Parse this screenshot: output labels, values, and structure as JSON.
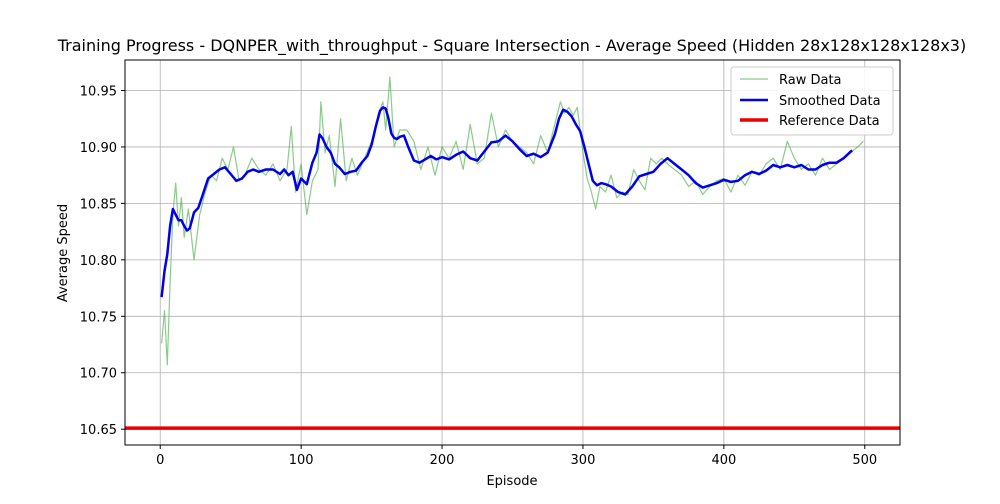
{
  "chart_data": {
    "type": "line",
    "title": "Training Progress - DQNPER_with_throughput - Square Intersection - Average Speed (Hidden 28x128x128x128x3)",
    "xlabel": "Episode",
    "ylabel": "Average Speed",
    "xlim": [
      -25,
      525
    ],
    "ylim": [
      10.636,
      10.977
    ],
    "xticks": [
      0,
      100,
      200,
      300,
      400,
      500
    ],
    "yticks": [
      10.65,
      10.7,
      10.75,
      10.8,
      10.85,
      10.9,
      10.95
    ],
    "grid": true,
    "legend_position": "top-right",
    "series": [
      {
        "name": "Raw Data",
        "color": "#4daf4a",
        "style": "thin-translucent",
        "x": [
          1,
          3,
          5,
          7,
          9,
          11,
          13,
          15,
          17,
          20,
          24,
          28,
          32,
          36,
          40,
          44,
          48,
          52,
          56,
          60,
          65,
          70,
          75,
          80,
          85,
          90,
          93,
          96,
          100,
          104,
          108,
          112,
          114,
          117,
          120,
          124,
          128,
          132,
          136,
          140,
          145,
          150,
          155,
          158,
          160,
          163,
          166,
          170,
          175,
          180,
          185,
          190,
          195,
          200,
          205,
          210,
          215,
          220,
          225,
          230,
          235,
          240,
          245,
          250,
          255,
          260,
          265,
          270,
          275,
          280,
          284,
          287,
          290,
          293,
          296,
          300,
          303,
          306,
          309,
          312,
          316,
          320,
          324,
          328,
          332,
          336,
          340,
          344,
          348,
          352,
          356,
          360,
          365,
          370,
          375,
          380,
          385,
          390,
          395,
          400,
          405,
          410,
          415,
          420,
          425,
          430,
          435,
          440,
          445,
          450,
          455,
          460,
          465,
          470,
          475,
          480,
          485,
          490,
          495,
          499
        ],
        "values": [
          10.726,
          10.755,
          10.707,
          10.78,
          10.84,
          10.868,
          10.83,
          10.855,
          10.82,
          10.845,
          10.8,
          10.84,
          10.86,
          10.875,
          10.87,
          10.89,
          10.88,
          10.9,
          10.87,
          10.875,
          10.89,
          10.88,
          10.875,
          10.885,
          10.87,
          10.88,
          10.918,
          10.86,
          10.885,
          10.84,
          10.87,
          10.88,
          10.94,
          10.895,
          10.91,
          10.865,
          10.925,
          10.87,
          10.89,
          10.875,
          10.89,
          10.905,
          10.93,
          10.94,
          10.915,
          10.962,
          10.9,
          10.915,
          10.915,
          10.905,
          10.88,
          10.9,
          10.875,
          10.9,
          10.89,
          10.905,
          10.88,
          10.92,
          10.885,
          10.89,
          10.93,
          10.9,
          10.915,
          10.905,
          10.9,
          10.895,
          10.885,
          10.91,
          10.895,
          10.92,
          10.94,
          10.93,
          10.935,
          10.928,
          10.935,
          10.895,
          10.872,
          10.86,
          10.845,
          10.865,
          10.86,
          10.875,
          10.855,
          10.86,
          10.858,
          10.88,
          10.87,
          10.862,
          10.89,
          10.885,
          10.89,
          10.885,
          10.88,
          10.875,
          10.865,
          10.87,
          10.858,
          10.865,
          10.87,
          10.872,
          10.86,
          10.875,
          10.866,
          10.878,
          10.875,
          10.885,
          10.89,
          10.88,
          10.905,
          10.89,
          10.88,
          10.885,
          10.875,
          10.89,
          10.88,
          10.885,
          10.89,
          10.895,
          10.9,
          10.905
        ]
      },
      {
        "name": "Smoothed Data",
        "color": "#0000ee",
        "style": "thick",
        "x": [
          1,
          3,
          5,
          7,
          9,
          11,
          13,
          15,
          17,
          19,
          21,
          24,
          27,
          30,
          34,
          38,
          42,
          46,
          50,
          54,
          58,
          62,
          66,
          70,
          75,
          80,
          85,
          88,
          91,
          94,
          97,
          100,
          104,
          108,
          111,
          113,
          115,
          118,
          121,
          124,
          127,
          131,
          135,
          139,
          143,
          147,
          150,
          153,
          156,
          158,
          160,
          162,
          164,
          166,
          168,
          170,
          173,
          176,
          180,
          184,
          188,
          192,
          196,
          200,
          205,
          210,
          215,
          220,
          225,
          230,
          235,
          240,
          245,
          250,
          255,
          260,
          265,
          270,
          275,
          280,
          283,
          286,
          289,
          292,
          295,
          298,
          301,
          304,
          307,
          310,
          313,
          316,
          320,
          325,
          330,
          335,
          340,
          345,
          350,
          355,
          360,
          365,
          370,
          375,
          380,
          385,
          390,
          395,
          400,
          405,
          410,
          415,
          420,
          425,
          430,
          435,
          440,
          445,
          450,
          455,
          460,
          465,
          470,
          475,
          480,
          485,
          491
        ],
        "values": [
          10.767,
          10.79,
          10.805,
          10.83,
          10.845,
          10.84,
          10.835,
          10.835,
          10.83,
          10.826,
          10.828,
          10.842,
          10.846,
          10.857,
          10.872,
          10.876,
          10.88,
          10.882,
          10.876,
          10.87,
          10.872,
          10.878,
          10.88,
          10.878,
          10.88,
          10.88,
          10.876,
          10.88,
          10.875,
          10.878,
          10.862,
          10.872,
          10.867,
          10.886,
          10.895,
          10.911,
          10.908,
          10.9,
          10.895,
          10.885,
          10.882,
          10.876,
          10.878,
          10.879,
          10.886,
          10.892,
          10.902,
          10.918,
          10.932,
          10.935,
          10.934,
          10.925,
          10.912,
          10.908,
          10.907,
          10.909,
          10.91,
          10.9,
          10.888,
          10.886,
          10.889,
          10.892,
          10.889,
          10.891,
          10.889,
          10.893,
          10.896,
          10.89,
          10.888,
          10.896,
          10.904,
          10.905,
          10.91,
          10.905,
          10.898,
          10.892,
          10.894,
          10.891,
          10.895,
          10.911,
          10.925,
          10.933,
          10.931,
          10.927,
          10.92,
          10.914,
          10.9,
          10.885,
          10.87,
          10.866,
          10.868,
          10.867,
          10.865,
          10.86,
          10.858,
          10.865,
          10.874,
          10.876,
          10.878,
          10.885,
          10.89,
          10.885,
          10.88,
          10.875,
          10.868,
          10.864,
          10.866,
          10.868,
          10.871,
          10.869,
          10.87,
          10.875,
          10.878,
          10.876,
          10.879,
          10.884,
          10.882,
          10.884,
          10.882,
          10.884,
          10.88,
          10.88,
          10.884,
          10.886,
          10.886,
          10.89,
          10.897
        ]
      },
      {
        "name": "Reference Data",
        "color": "#ee0000",
        "style": "thick-horizontal",
        "y": 10.651
      }
    ]
  }
}
